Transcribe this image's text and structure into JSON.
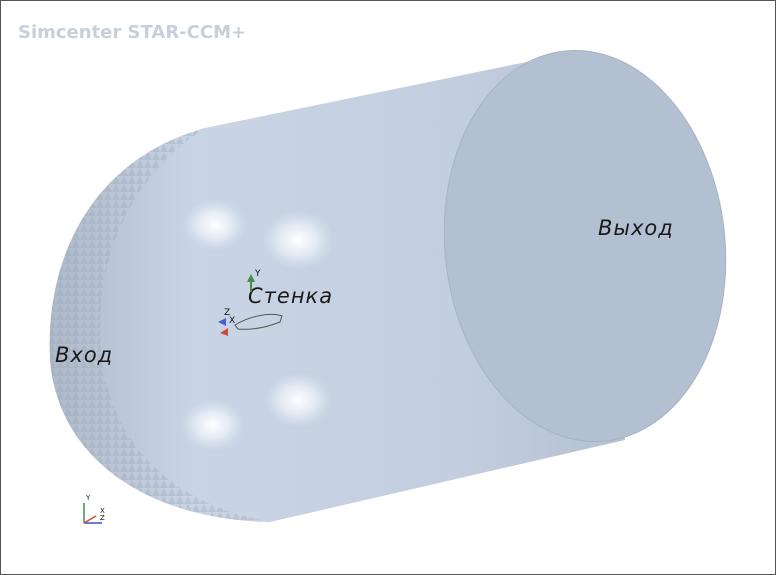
{
  "header": {
    "title": "Simcenter STAR-CCM+"
  },
  "scene": {
    "labels": {
      "inlet": "Вход",
      "wall": "Стенка",
      "outlet": "Выход"
    },
    "model_triad": {
      "y": "Y",
      "z": "Z",
      "x": "X"
    },
    "view_triad": {
      "y": "Y",
      "z": "Z",
      "x": "X"
    }
  }
}
